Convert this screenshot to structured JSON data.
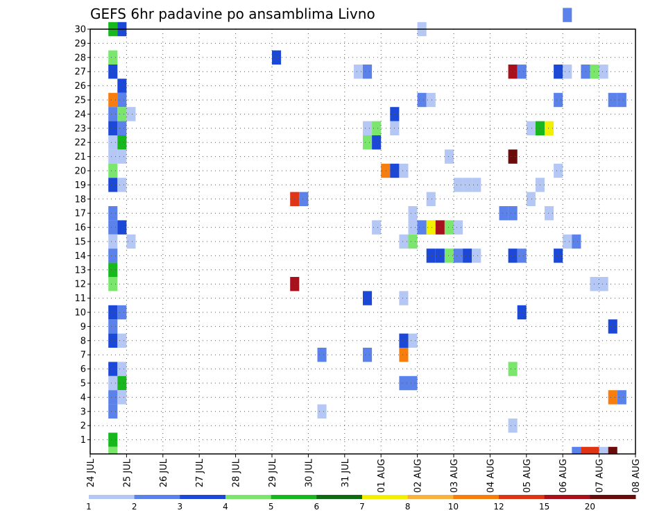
{
  "chart_data": {
    "type": "heatmap",
    "title": "GEFS 6hr padavine po ansamblima Livno",
    "xlabel": "",
    "ylabel": "",
    "x_ticks": [
      "24 JUL",
      "25 JUL",
      "26 JUL",
      "27 JUL",
      "28 JUL",
      "29 JUL",
      "30 JUL",
      "31 JUL",
      "01 AUG",
      "02 AUG",
      "03 AUG",
      "04 AUG",
      "05 AUG",
      "06 AUG",
      "07 AUG",
      "08 AUG"
    ],
    "y_ticks": [
      "1",
      "2",
      "3",
      "4",
      "5",
      "6",
      "7",
      "8",
      "9",
      "10",
      "11",
      "12",
      "13",
      "14",
      "15",
      "16",
      "17",
      "18",
      "19",
      "20",
      "21",
      "22",
      "23",
      "24",
      "25",
      "26",
      "27",
      "28",
      "29",
      "30"
    ],
    "time_steps_per_day": 4,
    "xlim_days": [
      0,
      15
    ],
    "ylim_members": [
      0,
      30
    ],
    "grid": true,
    "colorbar": {
      "labels": [
        "1",
        "2",
        "3",
        "4",
        "5",
        "6",
        "7",
        "8",
        "10",
        "12",
        "15",
        "20"
      ],
      "colors": [
        "#b4c7f5",
        "#5a82ea",
        "#1c48d8",
        "#7ae66b",
        "#17b81c",
        "#0d6b11",
        "#f0f000",
        "#fbb13d",
        "#f77d0d",
        "#df3515",
        "#a8111b",
        "#6c0c0a"
      ]
    },
    "cells": [
      [
        0,
        0.5,
        30,
        5
      ],
      [
        0,
        0.75,
        30,
        3
      ],
      [
        0,
        0.5,
        28,
        4
      ],
      [
        0,
        0.5,
        27,
        3
      ],
      [
        0,
        0.75,
        26,
        3
      ],
      [
        0,
        0.5,
        25,
        9
      ],
      [
        0,
        0.75,
        25,
        2
      ],
      [
        0,
        0.5,
        24,
        2
      ],
      [
        0,
        0.75,
        24,
        4
      ],
      [
        0,
        1,
        24,
        1
      ],
      [
        0,
        0.5,
        23,
        3
      ],
      [
        0,
        0.75,
        23,
        2
      ],
      [
        0,
        0.5,
        22,
        1
      ],
      [
        0,
        0.75,
        22,
        5
      ],
      [
        0,
        0.5,
        21,
        1
      ],
      [
        0,
        0.75,
        21,
        1
      ],
      [
        0,
        0.5,
        20,
        4
      ],
      [
        0,
        0.5,
        19,
        3
      ],
      [
        0,
        0.75,
        19,
        1
      ],
      [
        0,
        0.5,
        17,
        2
      ],
      [
        0,
        0.5,
        16,
        2
      ],
      [
        0,
        0.75,
        16,
        3
      ],
      [
        0,
        0.5,
        15,
        1
      ],
      [
        0,
        1,
        15,
        1
      ],
      [
        0,
        0.5,
        14,
        2
      ],
      [
        0,
        0.5,
        13,
        5
      ],
      [
        0,
        0.5,
        12,
        4
      ],
      [
        0,
        0.5,
        10,
        3
      ],
      [
        0,
        0.75,
        10,
        2
      ],
      [
        0,
        0.5,
        9,
        2
      ],
      [
        0,
        0.5,
        8,
        3
      ],
      [
        0,
        0.75,
        8,
        1
      ],
      [
        0,
        0.5,
        6,
        3
      ],
      [
        0,
        0.75,
        6,
        1
      ],
      [
        0,
        0.5,
        5,
        1
      ],
      [
        0,
        0.75,
        5,
        5
      ],
      [
        0,
        0.5,
        4,
        2
      ],
      [
        0,
        0.75,
        4,
        1
      ],
      [
        0,
        0.5,
        3,
        2
      ],
      [
        0,
        0.5,
        1,
        5
      ],
      [
        0,
        0.5,
        0,
        4
      ],
      [
        5,
        0,
        28,
        3
      ],
      [
        5,
        0.5,
        18,
        10
      ],
      [
        5,
        0.75,
        18,
        2
      ],
      [
        5,
        0.5,
        12,
        11
      ],
      [
        6,
        0.25,
        7,
        2
      ],
      [
        6,
        0.25,
        3,
        1
      ],
      [
        7,
        0.25,
        27,
        1
      ],
      [
        7,
        0.5,
        27,
        2
      ],
      [
        7,
        0.5,
        23,
        1
      ],
      [
        7,
        0.75,
        23,
        4
      ],
      [
        7,
        0.5,
        22,
        4
      ],
      [
        7,
        0.75,
        22,
        3
      ],
      [
        7,
        0.75,
        16,
        1
      ],
      [
        7,
        0.5,
        11,
        3
      ],
      [
        7,
        0.5,
        7,
        2
      ],
      [
        8,
        0,
        20,
        9
      ],
      [
        8,
        0.25,
        20,
        3
      ],
      [
        8,
        0.5,
        20,
        1
      ],
      [
        8,
        0.25,
        24,
        3
      ],
      [
        8,
        0.25,
        23,
        1
      ],
      [
        8,
        0.5,
        15,
        1
      ],
      [
        8,
        0.75,
        15,
        4
      ],
      [
        8,
        0.5,
        11,
        1
      ],
      [
        8,
        0.5,
        8,
        3
      ],
      [
        8,
        0.75,
        8,
        1
      ],
      [
        8,
        0.5,
        7,
        9
      ],
      [
        8,
        0.5,
        5,
        2
      ],
      [
        8,
        0.75,
        5,
        2
      ],
      [
        8,
        0.75,
        17,
        1
      ],
      [
        8,
        1,
        30,
        1
      ],
      [
        8,
        1,
        25,
        2
      ],
      [
        8,
        1.25,
        25,
        1
      ],
      [
        8,
        0.75,
        16,
        1
      ],
      [
        8,
        1,
        16,
        1
      ],
      [
        8,
        1.25,
        18,
        1
      ],
      [
        8,
        1.25,
        16,
        1
      ],
      [
        8,
        1.25,
        14,
        3
      ],
      [
        9,
        0,
        16,
        2
      ],
      [
        9,
        0.25,
        16,
        7
      ],
      [
        9,
        0.5,
        16,
        11
      ],
      [
        9,
        0.75,
        16,
        4
      ],
      [
        9,
        1,
        16,
        1
      ],
      [
        9,
        0.5,
        14,
        3
      ],
      [
        9,
        0.75,
        14,
        4
      ],
      [
        9,
        1,
        14,
        2
      ],
      [
        9,
        1.25,
        14,
        3
      ],
      [
        9,
        1.5,
        14,
        1
      ],
      [
        9,
        0.75,
        21,
        1
      ],
      [
        9,
        1,
        19,
        1
      ],
      [
        9,
        1.25,
        19,
        1
      ],
      [
        9,
        1.5,
        19,
        1
      ],
      [
        10,
        1.5,
        21,
        12
      ],
      [
        10,
        1.75,
        10,
        3
      ],
      [
        11,
        0.5,
        27,
        11
      ],
      [
        11,
        0.75,
        27,
        2
      ],
      [
        11,
        0.25,
        17,
        2
      ],
      [
        11,
        0.5,
        17,
        2
      ],
      [
        11,
        0.5,
        14,
        3
      ],
      [
        11,
        0.75,
        14,
        2
      ],
      [
        11,
        0.5,
        6,
        4
      ],
      [
        11,
        0.5,
        2,
        1
      ],
      [
        12,
        0,
        23,
        1
      ],
      [
        12,
        0.25,
        23,
        5
      ],
      [
        12,
        0.5,
        23,
        7
      ],
      [
        12,
        0.25,
        19,
        1
      ],
      [
        12,
        0,
        18,
        1
      ],
      [
        12,
        0.5,
        17,
        1
      ],
      [
        12,
        0.75,
        27,
        3
      ],
      [
        12,
        1,
        27,
        1
      ],
      [
        12,
        0.75,
        25,
        2
      ],
      [
        12,
        0.75,
        20,
        1
      ],
      [
        12,
        0.75,
        14,
        3
      ],
      [
        12,
        1,
        31,
        2
      ],
      [
        13,
        0,
        15,
        1
      ],
      [
        13,
        0.25,
        15,
        2
      ],
      [
        13,
        0.5,
        27,
        2
      ],
      [
        13,
        0.75,
        27,
        4
      ],
      [
        13,
        1,
        27,
        1
      ],
      [
        13,
        0.75,
        12,
        1
      ],
      [
        13,
        1,
        12,
        1
      ],
      [
        13,
        1.25,
        9,
        3
      ],
      [
        13,
        1.25,
        4,
        9
      ],
      [
        13,
        1.5,
        4,
        2
      ],
      [
        13,
        1.25,
        25,
        2
      ],
      [
        13,
        1.5,
        25,
        2
      ],
      [
        13,
        0.25,
        0,
        2
      ],
      [
        13,
        0.5,
        0,
        10
      ],
      [
        13,
        0.75,
        0,
        10
      ],
      [
        13,
        1,
        0,
        1
      ],
      [
        13,
        1.25,
        0,
        12
      ]
    ]
  }
}
